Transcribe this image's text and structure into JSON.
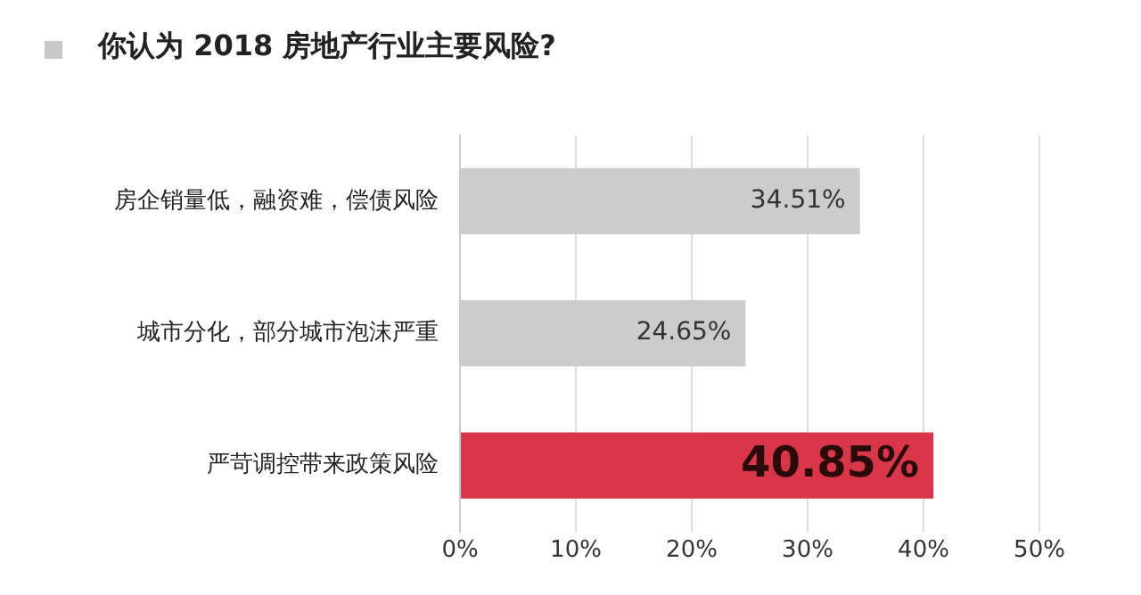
{
  "chart_data": {
    "type": "bar",
    "orientation": "horizontal",
    "title": "你认为 2018 房地产行业主要风险?",
    "categories": [
      "房企销量低，融资难，偿债风险",
      "城市分化，部分城市泡沫严重",
      "严苛调控带来政策风险"
    ],
    "values": [
      34.51,
      24.65,
      40.85
    ],
    "colors": [
      "#cccccc",
      "#cccccc",
      "#d9364a"
    ],
    "value_labels": [
      "34.51%",
      "24.65%",
      "40.85%"
    ],
    "xlim": [
      0,
      50
    ],
    "xticks": [
      {
        "value": 0,
        "label": "0%"
      },
      {
        "value": 10,
        "label": "10%"
      },
      {
        "value": 20,
        "label": "20%"
      },
      {
        "value": 30,
        "label": "30%"
      },
      {
        "value": 40,
        "label": "40%"
      },
      {
        "value": 50,
        "label": "50%"
      }
    ],
    "grid": "x",
    "legend": false
  }
}
